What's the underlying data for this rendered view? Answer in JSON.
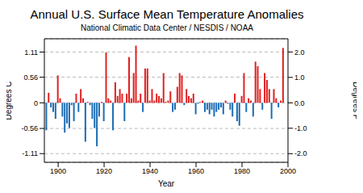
{
  "chart_data": {
    "type": "bar",
    "title": "Annual U.S. Surface Mean Temperature Anomalies",
    "subtitle": "National Climatic Data Center / NESDIS / NOAA",
    "x_label": "Year",
    "y_label": "Degrees C",
    "y2_label": "Degrees F",
    "x": [
      1895,
      1896,
      1897,
      1898,
      1899,
      1900,
      1901,
      1902,
      1903,
      1904,
      1905,
      1906,
      1907,
      1908,
      1909,
      1910,
      1911,
      1912,
      1913,
      1914,
      1915,
      1916,
      1917,
      1918,
      1919,
      1920,
      1921,
      1922,
      1923,
      1924,
      1925,
      1926,
      1927,
      1928,
      1929,
      1930,
      1931,
      1932,
      1933,
      1934,
      1935,
      1936,
      1937,
      1938,
      1939,
      1940,
      1941,
      1942,
      1943,
      1944,
      1945,
      1946,
      1947,
      1948,
      1949,
      1950,
      1951,
      1952,
      1953,
      1954,
      1955,
      1956,
      1957,
      1958,
      1959,
      1960,
      1961,
      1962,
      1963,
      1964,
      1965,
      1966,
      1967,
      1968,
      1969,
      1970,
      1971,
      1972,
      1973,
      1974,
      1975,
      1976,
      1977,
      1978,
      1979,
      1980,
      1981,
      1982,
      1983,
      1984,
      1985,
      1986,
      1987,
      1988,
      1989,
      1990,
      1991,
      1992,
      1993,
      1994,
      1995,
      1996,
      1997,
      1998
    ],
    "values": [
      -0.6,
      0.22,
      -0.1,
      -0.2,
      -0.35,
      0.6,
      0.1,
      -0.3,
      -0.65,
      -0.45,
      -0.55,
      -0.05,
      -0.4,
      0.2,
      -0.2,
      0.3,
      0.1,
      -0.85,
      0.02,
      -0.05,
      -0.35,
      -0.55,
      -0.95,
      -0.3,
      0.02,
      -0.4,
      1.1,
      0.1,
      0.05,
      -0.6,
      0.45,
      0.15,
      0.3,
      0.2,
      -0.4,
      0.2,
      1.0,
      0.1,
      0.65,
      1.25,
      0.05,
      0.2,
      -0.2,
      0.75,
      0.75,
      0.05,
      0.3,
      0.05,
      0.2,
      0.15,
      0.1,
      0.65,
      0.02,
      0.05,
      0.25,
      -0.2,
      -0.15,
      0.35,
      0.65,
      0.6,
      -0.05,
      0.3,
      0.15,
      0.1,
      0.2,
      -0.25,
      -0.02,
      0.02,
      0.05,
      -0.2,
      -0.15,
      -0.25,
      -0.15,
      -0.3,
      -0.2,
      -0.15,
      -0.1,
      -0.25,
      0.05,
      -0.02,
      -0.15,
      -0.3,
      0.2,
      -0.4,
      -0.5,
      0.15,
      0.65,
      -0.2,
      0.1,
      0.05,
      -0.3,
      0.9,
      0.8,
      0.3,
      -0.15,
      0.65,
      0.5,
      0.3,
      -0.35,
      0.3,
      0.1,
      -0.1,
      0.05,
      1.2
    ],
    "colors": [
      "#1c6cb5",
      "#e02020",
      "#1c6cb5",
      "#1c6cb5",
      "#1c6cb5",
      "#e02020",
      "#e02020",
      "#1c6cb5",
      "#1c6cb5",
      "#1c6cb5",
      "#1c6cb5",
      "#1c6cb5",
      "#1c6cb5",
      "#e02020",
      "#1c6cb5",
      "#e02020",
      "#e02020",
      "#1c6cb5",
      "#e02020",
      "#1c6cb5",
      "#1c6cb5",
      "#1c6cb5",
      "#1c6cb5",
      "#1c6cb5",
      "#e02020",
      "#1c6cb5",
      "#e02020",
      "#e02020",
      "#e02020",
      "#1c6cb5",
      "#e02020",
      "#e02020",
      "#e02020",
      "#e02020",
      "#1c6cb5",
      "#e02020",
      "#e02020",
      "#e02020",
      "#e02020",
      "#e02020",
      "#e02020",
      "#e02020",
      "#1c6cb5",
      "#e02020",
      "#e02020",
      "#e02020",
      "#e02020",
      "#e02020",
      "#e02020",
      "#e02020",
      "#e02020",
      "#e02020",
      "#e02020",
      "#e02020",
      "#e02020",
      "#1c6cb5",
      "#1c6cb5",
      "#e02020",
      "#e02020",
      "#e02020",
      "#1c6cb5",
      "#e02020",
      "#e02020",
      "#e02020",
      "#e02020",
      "#1c6cb5",
      "#1c6cb5",
      "#e02020",
      "#e02020",
      "#1c6cb5",
      "#1c6cb5",
      "#1c6cb5",
      "#1c6cb5",
      "#1c6cb5",
      "#1c6cb5",
      "#1c6cb5",
      "#1c6cb5",
      "#1c6cb5",
      "#e02020",
      "#1c6cb5",
      "#1c6cb5",
      "#1c6cb5",
      "#e02020",
      "#1c6cb5",
      "#1c6cb5",
      "#e02020",
      "#e02020",
      "#1c6cb5",
      "#e02020",
      "#e02020",
      "#1c6cb5",
      "#e02020",
      "#e02020",
      "#e02020",
      "#1c6cb5",
      "#e02020",
      "#e02020",
      "#e02020",
      "#1c6cb5",
      "#e02020",
      "#e02020",
      "#1c6cb5",
      "#e02020",
      "#e02020"
    ],
    "xlim": [
      1894,
      2000
    ],
    "xticks": [
      1900,
      1920,
      1940,
      1960,
      1980,
      2000
    ],
    "ylim": [
      -1.3,
      1.4
    ],
    "yticks": [
      -1.11,
      -0.56,
      0,
      0.56,
      1.11
    ],
    "y2lim": [
      -2.34,
      2.52
    ],
    "y2ticks": [
      {
        "value": -2,
        "label": "-2.0"
      },
      {
        "value": -1,
        "label": "-1.0"
      },
      {
        "value": 0,
        "label": "0.0"
      },
      {
        "value": 1,
        "label": "1.0"
      },
      {
        "value": 2,
        "label": "2.0"
      }
    ],
    "grid": true
  }
}
